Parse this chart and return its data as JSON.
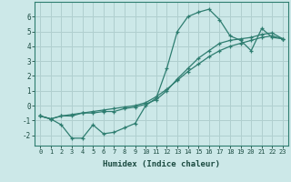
{
  "xlabel": "Humidex (Indice chaleur)",
  "ylabel": "",
  "background_color": "#cce8e8",
  "grid_color": "#b0cfcf",
  "line_color": "#2e7d70",
  "xlim": [
    -0.5,
    23.5
  ],
  "ylim": [
    -2.7,
    7.0
  ],
  "yticks": [
    -2,
    -1,
    0,
    1,
    2,
    3,
    4,
    5,
    6
  ],
  "xticks": [
    0,
    1,
    2,
    3,
    4,
    5,
    6,
    7,
    8,
    9,
    10,
    11,
    12,
    13,
    14,
    15,
    16,
    17,
    18,
    19,
    20,
    21,
    22,
    23
  ],
  "series1_x": [
    0,
    1,
    2,
    3,
    4,
    5,
    6,
    7,
    8,
    9,
    10,
    11,
    12,
    13,
    14,
    15,
    16,
    17,
    18,
    19,
    20,
    21,
    22,
    23
  ],
  "series1_y": [
    -0.7,
    -0.9,
    -1.3,
    -2.2,
    -2.2,
    -1.3,
    -1.9,
    -1.8,
    -1.5,
    -1.2,
    0.0,
    0.5,
    2.5,
    5.0,
    6.0,
    6.3,
    6.5,
    5.8,
    4.7,
    4.4,
    3.7,
    5.2,
    4.6,
    4.5
  ],
  "series2_x": [
    0,
    1,
    2,
    3,
    4,
    5,
    6,
    7,
    8,
    9,
    10,
    11,
    12,
    13,
    14,
    15,
    16,
    17,
    18,
    19,
    20,
    21,
    22,
    23
  ],
  "series2_y": [
    -0.7,
    -0.9,
    -0.7,
    -0.6,
    -0.5,
    -0.4,
    -0.3,
    -0.2,
    -0.1,
    0.0,
    0.2,
    0.6,
    1.1,
    1.7,
    2.3,
    2.8,
    3.3,
    3.7,
    4.0,
    4.2,
    4.4,
    4.6,
    4.7,
    4.5
  ],
  "series3_x": [
    0,
    1,
    2,
    3,
    4,
    5,
    6,
    7,
    8,
    9,
    10,
    11,
    12,
    13,
    14,
    15,
    16,
    17,
    18,
    19,
    20,
    21,
    22,
    23
  ],
  "series3_y": [
    -0.7,
    -0.9,
    -0.7,
    -0.7,
    -0.5,
    -0.5,
    -0.4,
    -0.4,
    -0.2,
    -0.1,
    0.1,
    0.4,
    1.0,
    1.8,
    2.5,
    3.2,
    3.7,
    4.2,
    4.4,
    4.5,
    4.6,
    4.8,
    4.9,
    4.5
  ]
}
